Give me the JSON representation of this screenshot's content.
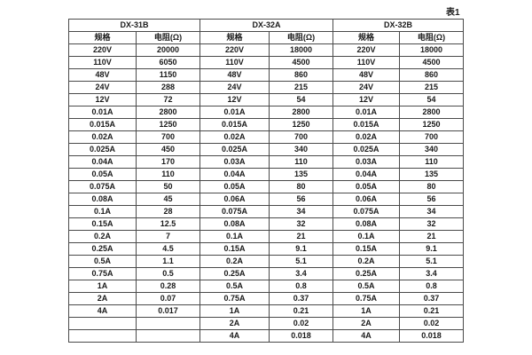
{
  "page": {
    "table_label": "表1"
  },
  "table": {
    "groups": [
      {
        "name": "DX-31B",
        "spec_header": "规格",
        "res_header": "电阻(Ω)"
      },
      {
        "name": "DX-32A",
        "spec_header": "规格",
        "res_header": "电阻(Ω)"
      },
      {
        "name": "DX-32B",
        "spec_header": "规格",
        "res_header": "电阻(Ω)"
      }
    ],
    "rows": [
      [
        "220V",
        "20000",
        "220V",
        "18000",
        "220V",
        "18000"
      ],
      [
        "110V",
        "6050",
        "110V",
        "4500",
        "110V",
        "4500"
      ],
      [
        "48V",
        "1150",
        "48V",
        "860",
        "48V",
        "860"
      ],
      [
        "24V",
        "288",
        "24V",
        "215",
        "24V",
        "215"
      ],
      [
        "12V",
        "72",
        "12V",
        "54",
        "12V",
        "54"
      ],
      [
        "0.01A",
        "2800",
        "0.01A",
        "2800",
        "0.01A",
        "2800"
      ],
      [
        "0.015A",
        "1250",
        "0.015A",
        "1250",
        "0.015A",
        "1250"
      ],
      [
        "0.02A",
        "700",
        "0.02A",
        "700",
        "0.02A",
        "700"
      ],
      [
        "0.025A",
        "450",
        "0.025A",
        "340",
        "0.025A",
        "340"
      ],
      [
        "0.04A",
        "170",
        "0.03A",
        "110",
        "0.03A",
        "110"
      ],
      [
        "0.05A",
        "110",
        "0.04A",
        "135",
        "0.04A",
        "135"
      ],
      [
        "0.075A",
        "50",
        "0.05A",
        "80",
        "0.05A",
        "80"
      ],
      [
        "0.08A",
        "45",
        "0.06A",
        "56",
        "0.06A",
        "56"
      ],
      [
        "0.1A",
        "28",
        "0.075A",
        "34",
        "0.075A",
        "34"
      ],
      [
        "0.15A",
        "12.5",
        "0.08A",
        "32",
        "0.08A",
        "32"
      ],
      [
        "0.2A",
        "7",
        "0.1A",
        "21",
        "0.1A",
        "21"
      ],
      [
        "0.25A",
        "4.5",
        "0.15A",
        "9.1",
        "0.15A",
        "9.1"
      ],
      [
        "0.5A",
        "1.1",
        "0.2A",
        "5.1",
        "0.2A",
        "5.1"
      ],
      [
        "0.75A",
        "0.5",
        "0.25A",
        "3.4",
        "0.25A",
        "3.4"
      ],
      [
        "1A",
        "0.28",
        "0.5A",
        "0.8",
        "0.5A",
        "0.8"
      ],
      [
        "2A",
        "0.07",
        "0.75A",
        "0.37",
        "0.75A",
        "0.37"
      ],
      [
        "4A",
        "0.017",
        "1A",
        "0.21",
        "1A",
        "0.21"
      ],
      [
        "",
        "",
        "2A",
        "0.02",
        "2A",
        "0.02"
      ],
      [
        "",
        "",
        "4A",
        "0.018",
        "4A",
        "0.018"
      ]
    ]
  }
}
